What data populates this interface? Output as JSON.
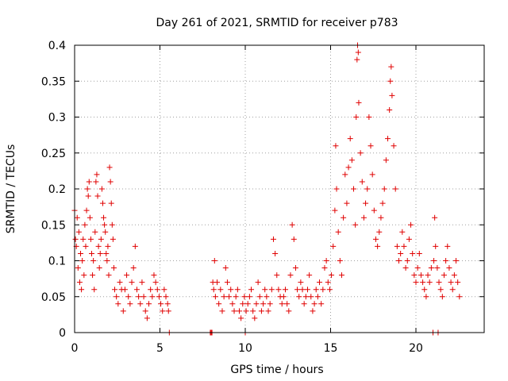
{
  "chart_data": {
    "type": "scatter",
    "title": "Day 261 of 2021, SRMTID for receiver p783",
    "xlabel": "GPS time / hours",
    "ylabel": "SRMTID / TECUs",
    "xlim": [
      0,
      24
    ],
    "ylim": [
      0,
      0.4
    ],
    "x_ticks": [
      0,
      5,
      10,
      15,
      20
    ],
    "x_tick_labels": [
      "0",
      "5",
      "10",
      "15",
      "20"
    ],
    "y_ticks": [
      0,
      0.05,
      0.1,
      0.15,
      0.2,
      0.25,
      0.3,
      0.35,
      0.4
    ],
    "y_tick_labels": [
      "0",
      "0.05",
      "0.1",
      "0.15",
      "0.2",
      "0.25",
      "0.3",
      "0.35",
      "0.4"
    ],
    "grid": true,
    "marker": "+",
    "color": "#e00000",
    "series": [
      {
        "name": "SRMTID",
        "points": [
          [
            0.0,
            0.17
          ],
          [
            0.05,
            0.13
          ],
          [
            0.1,
            0.12
          ],
          [
            0.15,
            0.16
          ],
          [
            0.2,
            0.09
          ],
          [
            0.25,
            0.14
          ],
          [
            0.3,
            0.07
          ],
          [
            0.35,
            0.11
          ],
          [
            0.4,
            0.06
          ],
          [
            0.45,
            0.1
          ],
          [
            0.5,
            0.13
          ],
          [
            0.55,
            0.08
          ],
          [
            0.6,
            0.15
          ],
          [
            0.65,
            0.12
          ],
          [
            0.7,
            0.17
          ],
          [
            0.75,
            0.2
          ],
          [
            0.8,
            0.19
          ],
          [
            0.85,
            0.21
          ],
          [
            0.9,
            0.16
          ],
          [
            0.95,
            0.13
          ],
          [
            1.0,
            0.11
          ],
          [
            1.05,
            0.08
          ],
          [
            1.1,
            0.1
          ],
          [
            1.15,
            0.06
          ],
          [
            1.2,
            0.14
          ],
          [
            1.25,
            0.21
          ],
          [
            1.3,
            0.22
          ],
          [
            1.35,
            0.19
          ],
          [
            1.4,
            0.12
          ],
          [
            1.45,
            0.09
          ],
          [
            1.5,
            0.11
          ],
          [
            1.55,
            0.13
          ],
          [
            1.6,
            0.2
          ],
          [
            1.65,
            0.18
          ],
          [
            1.7,
            0.16
          ],
          [
            1.75,
            0.15
          ],
          [
            1.8,
            0.14
          ],
          [
            1.85,
            0.11
          ],
          [
            1.9,
            0.1
          ],
          [
            1.95,
            0.12
          ],
          [
            2.0,
            0.08
          ],
          [
            2.05,
            0.23
          ],
          [
            2.1,
            0.21
          ],
          [
            2.15,
            0.18
          ],
          [
            2.2,
            0.15
          ],
          [
            2.25,
            0.13
          ],
          [
            2.3,
            0.09
          ],
          [
            2.35,
            0.06
          ],
          [
            2.45,
            0.05
          ],
          [
            2.55,
            0.04
          ],
          [
            2.65,
            0.07
          ],
          [
            2.75,
            0.06
          ],
          [
            2.85,
            0.03
          ],
          [
            2.95,
            0.06
          ],
          [
            3.05,
            0.08
          ],
          [
            3.15,
            0.05
          ],
          [
            3.25,
            0.04
          ],
          [
            3.35,
            0.07
          ],
          [
            3.45,
            0.09
          ],
          [
            3.55,
            0.12
          ],
          [
            3.65,
            0.06
          ],
          [
            3.75,
            0.05
          ],
          [
            3.85,
            0.04
          ],
          [
            3.95,
            0.07
          ],
          [
            4.05,
            0.05
          ],
          [
            4.15,
            0.03
          ],
          [
            4.25,
            0.02
          ],
          [
            4.35,
            0.04
          ],
          [
            4.45,
            0.06
          ],
          [
            4.55,
            0.05
          ],
          [
            4.65,
            0.08
          ],
          [
            4.75,
            0.07
          ],
          [
            4.85,
            0.06
          ],
          [
            4.95,
            0.05
          ],
          [
            5.05,
            0.04
          ],
          [
            5.15,
            0.03
          ],
          [
            5.25,
            0.06
          ],
          [
            5.35,
            0.05
          ],
          [
            5.45,
            0.04
          ],
          [
            5.5,
            0.03
          ],
          [
            5.55,
            0.0
          ],
          [
            7.95,
            0.0
          ],
          [
            8.0,
            0.0
          ],
          [
            8.05,
            0.0
          ],
          [
            8.1,
            0.07
          ],
          [
            8.15,
            0.06
          ],
          [
            8.2,
            0.1
          ],
          [
            8.25,
            0.05
          ],
          [
            8.35,
            0.07
          ],
          [
            8.45,
            0.04
          ],
          [
            8.55,
            0.06
          ],
          [
            8.65,
            0.03
          ],
          [
            8.75,
            0.05
          ],
          [
            8.85,
            0.09
          ],
          [
            8.95,
            0.07
          ],
          [
            9.05,
            0.05
          ],
          [
            9.15,
            0.06
          ],
          [
            9.25,
            0.04
          ],
          [
            9.35,
            0.03
          ],
          [
            9.45,
            0.05
          ],
          [
            9.55,
            0.06
          ],
          [
            9.65,
            0.03
          ],
          [
            9.75,
            0.02
          ],
          [
            9.85,
            0.04
          ],
          [
            9.95,
            0.05
          ],
          [
            10.0,
            0.0
          ],
          [
            10.05,
            0.03
          ],
          [
            10.15,
            0.04
          ],
          [
            10.25,
            0.05
          ],
          [
            10.35,
            0.06
          ],
          [
            10.45,
            0.03
          ],
          [
            10.55,
            0.02
          ],
          [
            10.65,
            0.04
          ],
          [
            10.75,
            0.07
          ],
          [
            10.85,
            0.05
          ],
          [
            10.95,
            0.03
          ],
          [
            11.05,
            0.04
          ],
          [
            11.15,
            0.06
          ],
          [
            11.25,
            0.05
          ],
          [
            11.35,
            0.03
          ],
          [
            11.45,
            0.04
          ],
          [
            11.55,
            0.06
          ],
          [
            11.65,
            0.13
          ],
          [
            11.75,
            0.11
          ],
          [
            11.85,
            0.08
          ],
          [
            11.95,
            0.06
          ],
          [
            12.05,
            0.05
          ],
          [
            12.15,
            0.04
          ],
          [
            12.25,
            0.05
          ],
          [
            12.35,
            0.06
          ],
          [
            12.45,
            0.04
          ],
          [
            12.55,
            0.03
          ],
          [
            12.65,
            0.08
          ],
          [
            12.75,
            0.15
          ],
          [
            12.85,
            0.13
          ],
          [
            12.95,
            0.09
          ],
          [
            13.05,
            0.06
          ],
          [
            13.15,
            0.05
          ],
          [
            13.25,
            0.07
          ],
          [
            13.35,
            0.06
          ],
          [
            13.45,
            0.04
          ],
          [
            13.55,
            0.05
          ],
          [
            13.65,
            0.06
          ],
          [
            13.75,
            0.08
          ],
          [
            13.85,
            0.05
          ],
          [
            13.95,
            0.03
          ],
          [
            14.05,
            0.04
          ],
          [
            14.15,
            0.06
          ],
          [
            14.25,
            0.05
          ],
          [
            14.35,
            0.07
          ],
          [
            14.45,
            0.04
          ],
          [
            14.55,
            0.06
          ],
          [
            14.65,
            0.09
          ],
          [
            14.75,
            0.1
          ],
          [
            14.85,
            0.07
          ],
          [
            14.95,
            0.06
          ],
          [
            15.05,
            0.08
          ],
          [
            15.15,
            0.12
          ],
          [
            15.25,
            0.17
          ],
          [
            15.3,
            0.26
          ],
          [
            15.35,
            0.2
          ],
          [
            15.45,
            0.14
          ],
          [
            15.55,
            0.1
          ],
          [
            15.65,
            0.08
          ],
          [
            15.75,
            0.16
          ],
          [
            15.85,
            0.22
          ],
          [
            15.95,
            0.18
          ],
          [
            16.05,
            0.23
          ],
          [
            16.15,
            0.27
          ],
          [
            16.25,
            0.24
          ],
          [
            16.35,
            0.2
          ],
          [
            16.45,
            0.15
          ],
          [
            16.5,
            0.3
          ],
          [
            16.55,
            0.38
          ],
          [
            16.58,
            0.4
          ],
          [
            16.62,
            0.39
          ],
          [
            16.65,
            0.32
          ],
          [
            16.75,
            0.25
          ],
          [
            16.85,
            0.21
          ],
          [
            16.95,
            0.16
          ],
          [
            17.05,
            0.18
          ],
          [
            17.15,
            0.2
          ],
          [
            17.25,
            0.3
          ],
          [
            17.35,
            0.26
          ],
          [
            17.45,
            0.22
          ],
          [
            17.55,
            0.17
          ],
          [
            17.65,
            0.13
          ],
          [
            17.75,
            0.12
          ],
          [
            17.85,
            0.14
          ],
          [
            17.95,
            0.16
          ],
          [
            18.05,
            0.18
          ],
          [
            18.15,
            0.2
          ],
          [
            18.25,
            0.24
          ],
          [
            18.35,
            0.27
          ],
          [
            18.45,
            0.31
          ],
          [
            18.5,
            0.35
          ],
          [
            18.55,
            0.37
          ],
          [
            18.6,
            0.33
          ],
          [
            18.7,
            0.26
          ],
          [
            18.8,
            0.2
          ],
          [
            18.9,
            0.12
          ],
          [
            19.0,
            0.1
          ],
          [
            19.1,
            0.11
          ],
          [
            19.2,
            0.14
          ],
          [
            19.3,
            0.12
          ],
          [
            19.4,
            0.09
          ],
          [
            19.5,
            0.1
          ],
          [
            19.6,
            0.13
          ],
          [
            19.7,
            0.15
          ],
          [
            19.8,
            0.11
          ],
          [
            19.9,
            0.08
          ],
          [
            20.0,
            0.07
          ],
          [
            20.1,
            0.09
          ],
          [
            20.2,
            0.11
          ],
          [
            20.3,
            0.08
          ],
          [
            20.4,
            0.07
          ],
          [
            20.5,
            0.06
          ],
          [
            20.6,
            0.05
          ],
          [
            20.7,
            0.08
          ],
          [
            20.8,
            0.07
          ],
          [
            20.9,
            0.09
          ],
          [
            21.0,
            0.0
          ],
          [
            21.05,
            0.1
          ],
          [
            21.1,
            0.16
          ],
          [
            21.15,
            0.12
          ],
          [
            21.25,
            0.09
          ],
          [
            21.3,
            0.0
          ],
          [
            21.35,
            0.07
          ],
          [
            21.45,
            0.06
          ],
          [
            21.55,
            0.05
          ],
          [
            21.65,
            0.08
          ],
          [
            21.75,
            0.1
          ],
          [
            21.85,
            0.12
          ],
          [
            21.95,
            0.09
          ],
          [
            22.05,
            0.07
          ],
          [
            22.15,
            0.06
          ],
          [
            22.25,
            0.08
          ],
          [
            22.35,
            0.1
          ],
          [
            22.45,
            0.07
          ],
          [
            22.55,
            0.05
          ]
        ]
      }
    ]
  }
}
